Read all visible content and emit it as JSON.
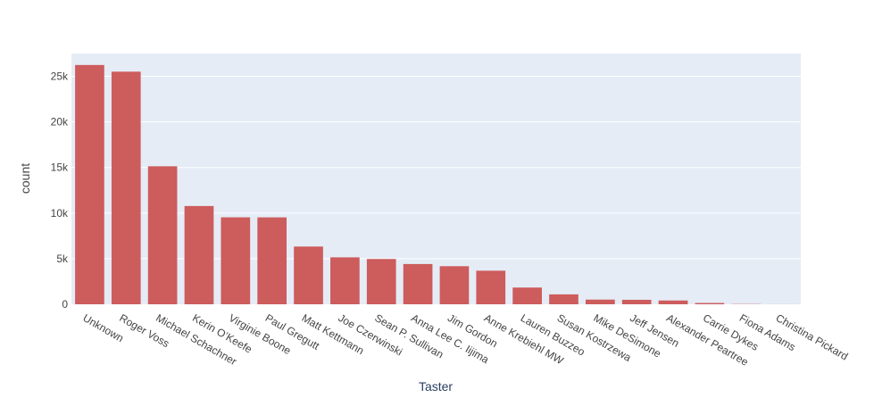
{
  "chart_data": {
    "type": "bar",
    "xlabel": "Taster",
    "ylabel": "count",
    "ylim": [
      0,
      27500
    ],
    "yticks": [
      0,
      5000,
      10000,
      15000,
      20000,
      25000
    ],
    "ytick_labels": [
      "0",
      "5k",
      "10k",
      "15k",
      "20k",
      "25k"
    ],
    "grid": true,
    "categories": [
      "Unknown",
      "Roger Voss",
      "Michael Schachner",
      "Kerin O’Keefe",
      "Virginie Boone",
      "Paul Gregutt",
      "Matt Kettmann",
      "Joe Czerwinski",
      "Sean P. Sullivan",
      "Anna Lee C. Iijima",
      "Jim Gordon",
      "Anne Krebiehl MW",
      "Lauren Buzzeo",
      "Susan Kostrzewa",
      "Mike DeSimone",
      "Jeff Jensen",
      "Alexander Peartree",
      "Carrie Dykes",
      "Fiona Adams",
      "Christina Pickard"
    ],
    "values": [
      26244,
      25514,
      15134,
      10776,
      9537,
      9532,
      6332,
      5147,
      4966,
      4415,
      4177,
      3685,
      1835,
      1085,
      514,
      491,
      415,
      139,
      27,
      6
    ],
    "colors": {
      "bar": "#cd5c5c",
      "plot_bg": "#e5ecf6",
      "grid": "#ffffff",
      "text": "#444444",
      "title_text": "#2a3f5f"
    }
  }
}
